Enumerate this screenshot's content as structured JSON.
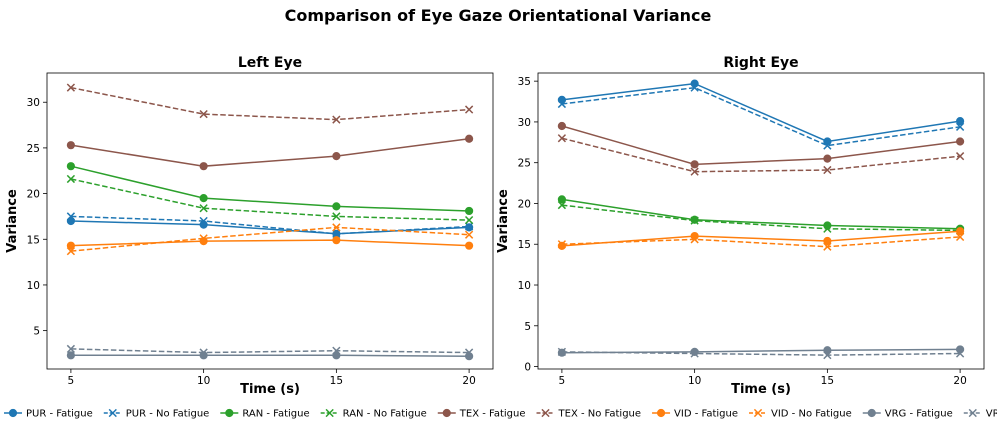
{
  "figure_title": "Comparison of Eye Gaze Orientational Variance",
  "chart_data": [
    {
      "type": "line",
      "title": "Left Eye",
      "xlabel": "Time (s)",
      "ylabel": "Variance",
      "x": [
        5,
        10,
        15,
        20
      ],
      "xlim": [
        4.1,
        20.9
      ],
      "ylim": [
        0.8,
        33.2
      ],
      "xticks": [
        5,
        10,
        15,
        20
      ],
      "yticks": [
        5,
        10,
        15,
        20,
        25,
        30
      ],
      "grid": false,
      "series": [
        {
          "name": "PUR - Fatigue",
          "values": [
            17.0,
            16.6,
            15.6,
            16.3
          ]
        },
        {
          "name": "PUR - No Fatigue",
          "values": [
            17.5,
            17.0,
            15.6,
            16.4
          ]
        },
        {
          "name": "RAN - Fatigue",
          "values": [
            23.0,
            19.5,
            18.6,
            18.1
          ]
        },
        {
          "name": "RAN - No Fatigue",
          "values": [
            21.6,
            18.4,
            17.5,
            17.1
          ]
        },
        {
          "name": "TEX - Fatigue",
          "values": [
            25.3,
            23.0,
            24.1,
            26.0
          ]
        },
        {
          "name": "TEX - No Fatigue",
          "values": [
            31.6,
            28.7,
            28.1,
            29.2
          ]
        },
        {
          "name": "VID - Fatigue",
          "values": [
            14.3,
            14.8,
            14.9,
            14.3
          ]
        },
        {
          "name": "VID - No Fatigue",
          "values": [
            13.7,
            15.1,
            16.3,
            15.5
          ]
        },
        {
          "name": "VRG - Fatigue",
          "values": [
            2.3,
            2.3,
            2.3,
            2.2
          ]
        },
        {
          "name": "VRG - No Fatigue",
          "values": [
            3.0,
            2.6,
            2.8,
            2.6
          ]
        }
      ]
    },
    {
      "type": "line",
      "title": "Right Eye",
      "xlabel": "Time (s)",
      "ylabel": "Variance",
      "x": [
        5,
        10,
        15,
        20
      ],
      "xlim": [
        4.1,
        20.9
      ],
      "ylim": [
        -0.3,
        36.0
      ],
      "xticks": [
        5,
        10,
        15,
        20
      ],
      "yticks": [
        0,
        5,
        10,
        15,
        20,
        25,
        30,
        35
      ],
      "grid": false,
      "series": [
        {
          "name": "PUR - Fatigue",
          "values": [
            32.7,
            34.7,
            27.6,
            30.1
          ]
        },
        {
          "name": "PUR - No Fatigue",
          "values": [
            32.2,
            34.2,
            27.1,
            29.4
          ]
        },
        {
          "name": "RAN - Fatigue",
          "values": [
            20.5,
            18.0,
            17.3,
            16.9
          ]
        },
        {
          "name": "RAN - No Fatigue",
          "values": [
            19.8,
            17.9,
            16.9,
            16.7
          ]
        },
        {
          "name": "TEX - Fatigue",
          "values": [
            29.5,
            24.8,
            25.5,
            27.6
          ]
        },
        {
          "name": "TEX - No Fatigue",
          "values": [
            28.0,
            23.9,
            24.1,
            25.8
          ]
        },
        {
          "name": "VID - Fatigue",
          "values": [
            14.8,
            16.0,
            15.4,
            16.6
          ]
        },
        {
          "name": "VID - No Fatigue",
          "values": [
            15.0,
            15.6,
            14.7,
            15.9
          ]
        },
        {
          "name": "VRG - Fatigue",
          "values": [
            1.7,
            1.8,
            2.0,
            2.1
          ]
        },
        {
          "name": "VRG - No Fatigue",
          "values": [
            1.8,
            1.6,
            1.4,
            1.6
          ]
        }
      ]
    }
  ],
  "legend": {
    "position": "bottom-center",
    "items": [
      {
        "label": "PUR - Fatigue",
        "color": "#1f77b4",
        "marker": "circle",
        "linestyle": "solid"
      },
      {
        "label": "PUR - No Fatigue",
        "color": "#1f77b4",
        "marker": "x",
        "linestyle": "dashed"
      },
      {
        "label": "RAN - Fatigue",
        "color": "#2ca02c",
        "marker": "circle",
        "linestyle": "solid"
      },
      {
        "label": "RAN - No Fatigue",
        "color": "#2ca02c",
        "marker": "x",
        "linestyle": "dashed"
      },
      {
        "label": "TEX - Fatigue",
        "color": "#8c564b",
        "marker": "circle",
        "linestyle": "solid"
      },
      {
        "label": "TEX - No Fatigue",
        "color": "#8c564b",
        "marker": "x",
        "linestyle": "dashed"
      },
      {
        "label": "VID - Fatigue",
        "color": "#ff7f0e",
        "marker": "circle",
        "linestyle": "solid"
      },
      {
        "label": "VID - No Fatigue",
        "color": "#ff7f0e",
        "marker": "x",
        "linestyle": "dashed"
      },
      {
        "label": "VRG - Fatigue",
        "color": "#708090",
        "marker": "circle",
        "linestyle": "solid"
      },
      {
        "label": "VRG - No Fatigue",
        "color": "#708090",
        "marker": "x",
        "linestyle": "dashed"
      }
    ]
  }
}
